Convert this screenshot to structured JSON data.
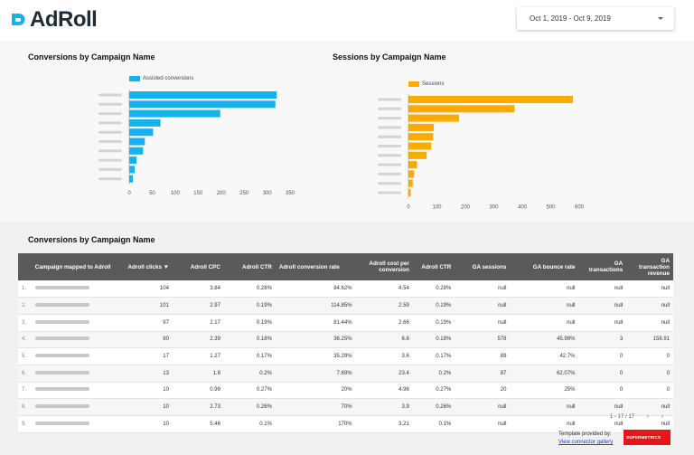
{
  "header": {
    "logo_text": "AdRoll",
    "date_range": "Oct 1, 2019 - Oct 9, 2019"
  },
  "charts": {
    "left_title": "Conversions by Campaign Name",
    "right_title": "Sessions by Campaign Name"
  },
  "chart_data": [
    {
      "type": "bar",
      "orientation": "horizontal",
      "title": "Conversions by Campaign Name",
      "legend": "top-left",
      "series": [
        {
          "name": "Assisted conversions",
          "values": [
            321,
            318,
            198,
            68,
            52,
            34,
            30,
            16,
            12,
            8
          ]
        }
      ],
      "categories": [
        "",
        "",
        "",
        "",
        "",
        "",
        "",
        "",
        "",
        ""
      ],
      "xticks": [
        0,
        50,
        100,
        150,
        200,
        250,
        300,
        350
      ],
      "xlim": [
        0,
        350
      ],
      "color": "#15b2ee"
    },
    {
      "type": "bar",
      "orientation": "horizontal",
      "title": "Sessions by Campaign Name",
      "legend": "top-left",
      "series": [
        {
          "name": "Sessions",
          "values": [
            578,
            373,
            178,
            89,
            87,
            80,
            64,
            30,
            20,
            15,
            8
          ]
        }
      ],
      "categories": [
        "",
        "",
        "",
        "",
        "",
        "",
        "",
        "",
        "",
        "",
        ""
      ],
      "xticks": [
        0,
        100,
        200,
        300,
        400,
        500,
        600
      ],
      "xlim": [
        0,
        600
      ],
      "color": "#f9ab00"
    }
  ],
  "table": {
    "title": "Conversions by Campaign Name",
    "columns": [
      "",
      "Campaign mapped to Adroll",
      "Adroll clicks",
      "Adroll CPC",
      "Adroll CTR",
      "Adroll conversion rate",
      "Adroll cost per conversion",
      "Adroll CTR",
      "GA sessions",
      "GA bounce rate",
      "GA transactions",
      "GA transaction revenue"
    ],
    "sort_indicator": "▼",
    "rows": [
      [
        "1.",
        "",
        "104",
        "3.84",
        "0.28%",
        "84.62%",
        "4.54",
        "0.28%",
        "null",
        "null",
        "null",
        "null"
      ],
      [
        "2.",
        "",
        "101",
        "2.97",
        "0.19%",
        "114.85%",
        "2.59",
        "0.19%",
        "null",
        "null",
        "null",
        "null"
      ],
      [
        "3.",
        "",
        "97",
        "2.17",
        "0.19%",
        "81.44%",
        "2.66",
        "0.19%",
        "null",
        "null",
        "null",
        "null"
      ],
      [
        "4.",
        "",
        "80",
        "2.39",
        "0.18%",
        "36.25%",
        "6.6",
        "0.18%",
        "578",
        "45.98%",
        "3",
        "158.91"
      ],
      [
        "5.",
        "",
        "17",
        "1.27",
        "0.17%",
        "35.29%",
        "3.6",
        "0.17%",
        "89",
        "42.7%",
        "0",
        "0"
      ],
      [
        "6.",
        "",
        "13",
        "1.8",
        "0.2%",
        "7.69%",
        "23.4",
        "0.2%",
        "87",
        "62.07%",
        "0",
        "0"
      ],
      [
        "7.",
        "",
        "10",
        "0.99",
        "0.27%",
        "20%",
        "4.96",
        "0.27%",
        "20",
        "25%",
        "0",
        "0"
      ],
      [
        "8.",
        "",
        "10",
        "2.73",
        "0.26%",
        "70%",
        "3.9",
        "0.26%",
        "null",
        "null",
        "null",
        "null"
      ],
      [
        "9.",
        "",
        "10",
        "5.46",
        "0.1%",
        "170%",
        "3.21",
        "0.1%",
        "null",
        "null",
        "null",
        "null"
      ]
    ],
    "pagination": "1 - 17 / 17",
    "prev": "‹",
    "next": "›"
  },
  "footer": {
    "provided_by": "Template provided by:",
    "link": "View connector gallery",
    "brand": "SUPERMETRICS"
  },
  "colors": {
    "cyan": "#15b2ee",
    "amber": "#f9ab00",
    "header_row": "#5a5a5a",
    "brand_red": "#e8141b"
  }
}
